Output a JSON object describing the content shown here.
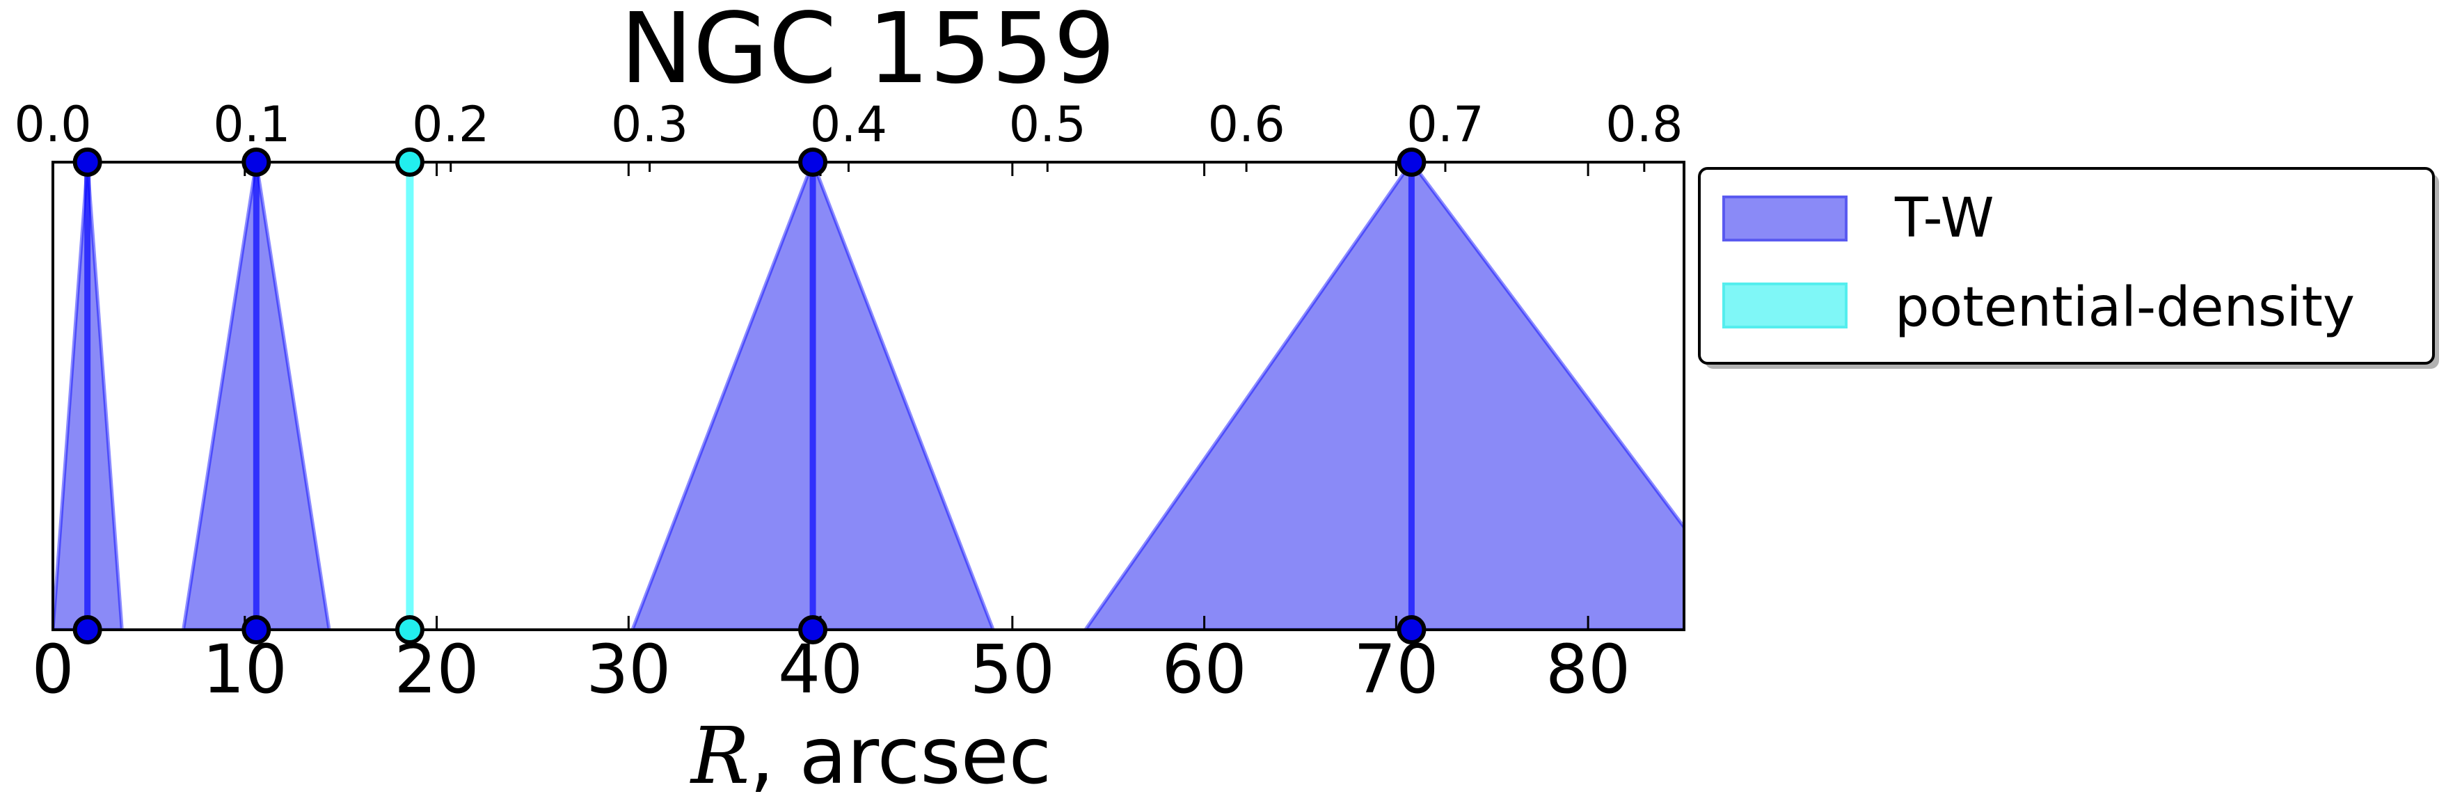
{
  "chart_data": {
    "type": "area",
    "title": "NGC 1559",
    "xlabel_var": "R",
    "xlabel_rest": ", arcsec",
    "xlim": [
      0,
      85
    ],
    "xticks": [
      0,
      10,
      20,
      30,
      40,
      50,
      60,
      70,
      80
    ],
    "top_axis": {
      "ticks": [
        0.0,
        0.1,
        0.2,
        0.3,
        0.4,
        0.5,
        0.6,
        0.7,
        0.8
      ],
      "tick_labels": [
        "0.0",
        "0.1",
        "0.2",
        "0.3",
        "0.4",
        "0.5",
        "0.6",
        "0.7",
        "0.8"
      ],
      "lim": [
        0,
        0.82
      ]
    },
    "series": [
      {
        "name": "T-W",
        "color": "#0000ff",
        "fill_color": "#8a8af7",
        "peaks": [
          {
            "x": 1.8,
            "left": 0.0,
            "right": 3.6
          },
          {
            "x": 10.6,
            "left": 6.8,
            "right": 14.4
          },
          {
            "x": 39.6,
            "left": 30.2,
            "right": 49.0
          },
          {
            "x": 70.8,
            "left": 53.8,
            "right": 89.0
          }
        ]
      },
      {
        "name": "potential-density",
        "color": "#00ffff",
        "fill_color": "#7ff7f7",
        "peaks": [
          {
            "x": 18.6,
            "left": 18.6,
            "right": 18.6
          }
        ]
      }
    ],
    "legend_placement": "outside-right-top",
    "grid": false
  }
}
